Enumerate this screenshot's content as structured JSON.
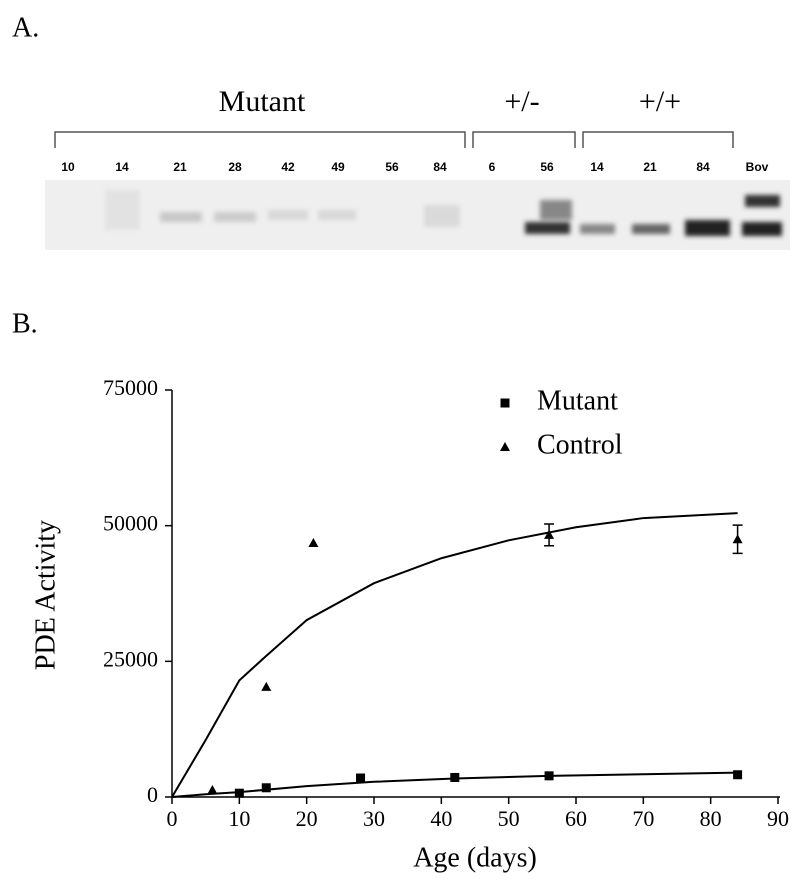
{
  "panel_a": {
    "label": "A.",
    "groups": [
      "Mutant",
      "+/-",
      "+/+"
    ],
    "lanes": [
      "10",
      "14",
      "21",
      "28",
      "42",
      "49",
      "56",
      "84",
      "6",
      "56",
      "14",
      "21",
      "84",
      "Bov"
    ]
  },
  "chart_data": {
    "type": "scatter",
    "panel_label": "B.",
    "xlabel": "Age (days)",
    "ylabel": "PDE Activity",
    "xlim": [
      0,
      90
    ],
    "xticks": [
      0,
      10,
      20,
      30,
      40,
      50,
      60,
      70,
      80,
      90
    ],
    "ylim": [
      0,
      75000
    ],
    "yticks": [
      0,
      25000,
      50000,
      75000
    ],
    "grid": false,
    "legend": "upper right",
    "series": [
      {
        "name": "Mutant",
        "marker": "square",
        "color": "#000000",
        "x": [
          10,
          14,
          28,
          42,
          56,
          84
        ],
        "values": [
          700,
          1700,
          3500,
          3600,
          3900,
          4100
        ]
      },
      {
        "name": "Control",
        "marker": "triangle",
        "color": "#000000",
        "x": [
          6,
          14,
          21,
          56,
          84
        ],
        "values": [
          1300,
          20300,
          46800,
          48300,
          47500
        ],
        "errors": [
          null,
          null,
          null,
          2000,
          2600
        ]
      }
    ],
    "fit_curves": [
      {
        "x": [
          0,
          5,
          10,
          20,
          30,
          42,
          56,
          70,
          84
        ],
        "values": [
          0,
          500,
          900,
          2000,
          2800,
          3400,
          3900,
          4200,
          4500
        ]
      },
      {
        "x": [
          0,
          5,
          10,
          14,
          20,
          30,
          40,
          50,
          60,
          70,
          84
        ],
        "values": [
          0,
          10500,
          21500,
          26000,
          32600,
          39400,
          44000,
          47300,
          49700,
          51400,
          52300
        ]
      }
    ]
  }
}
